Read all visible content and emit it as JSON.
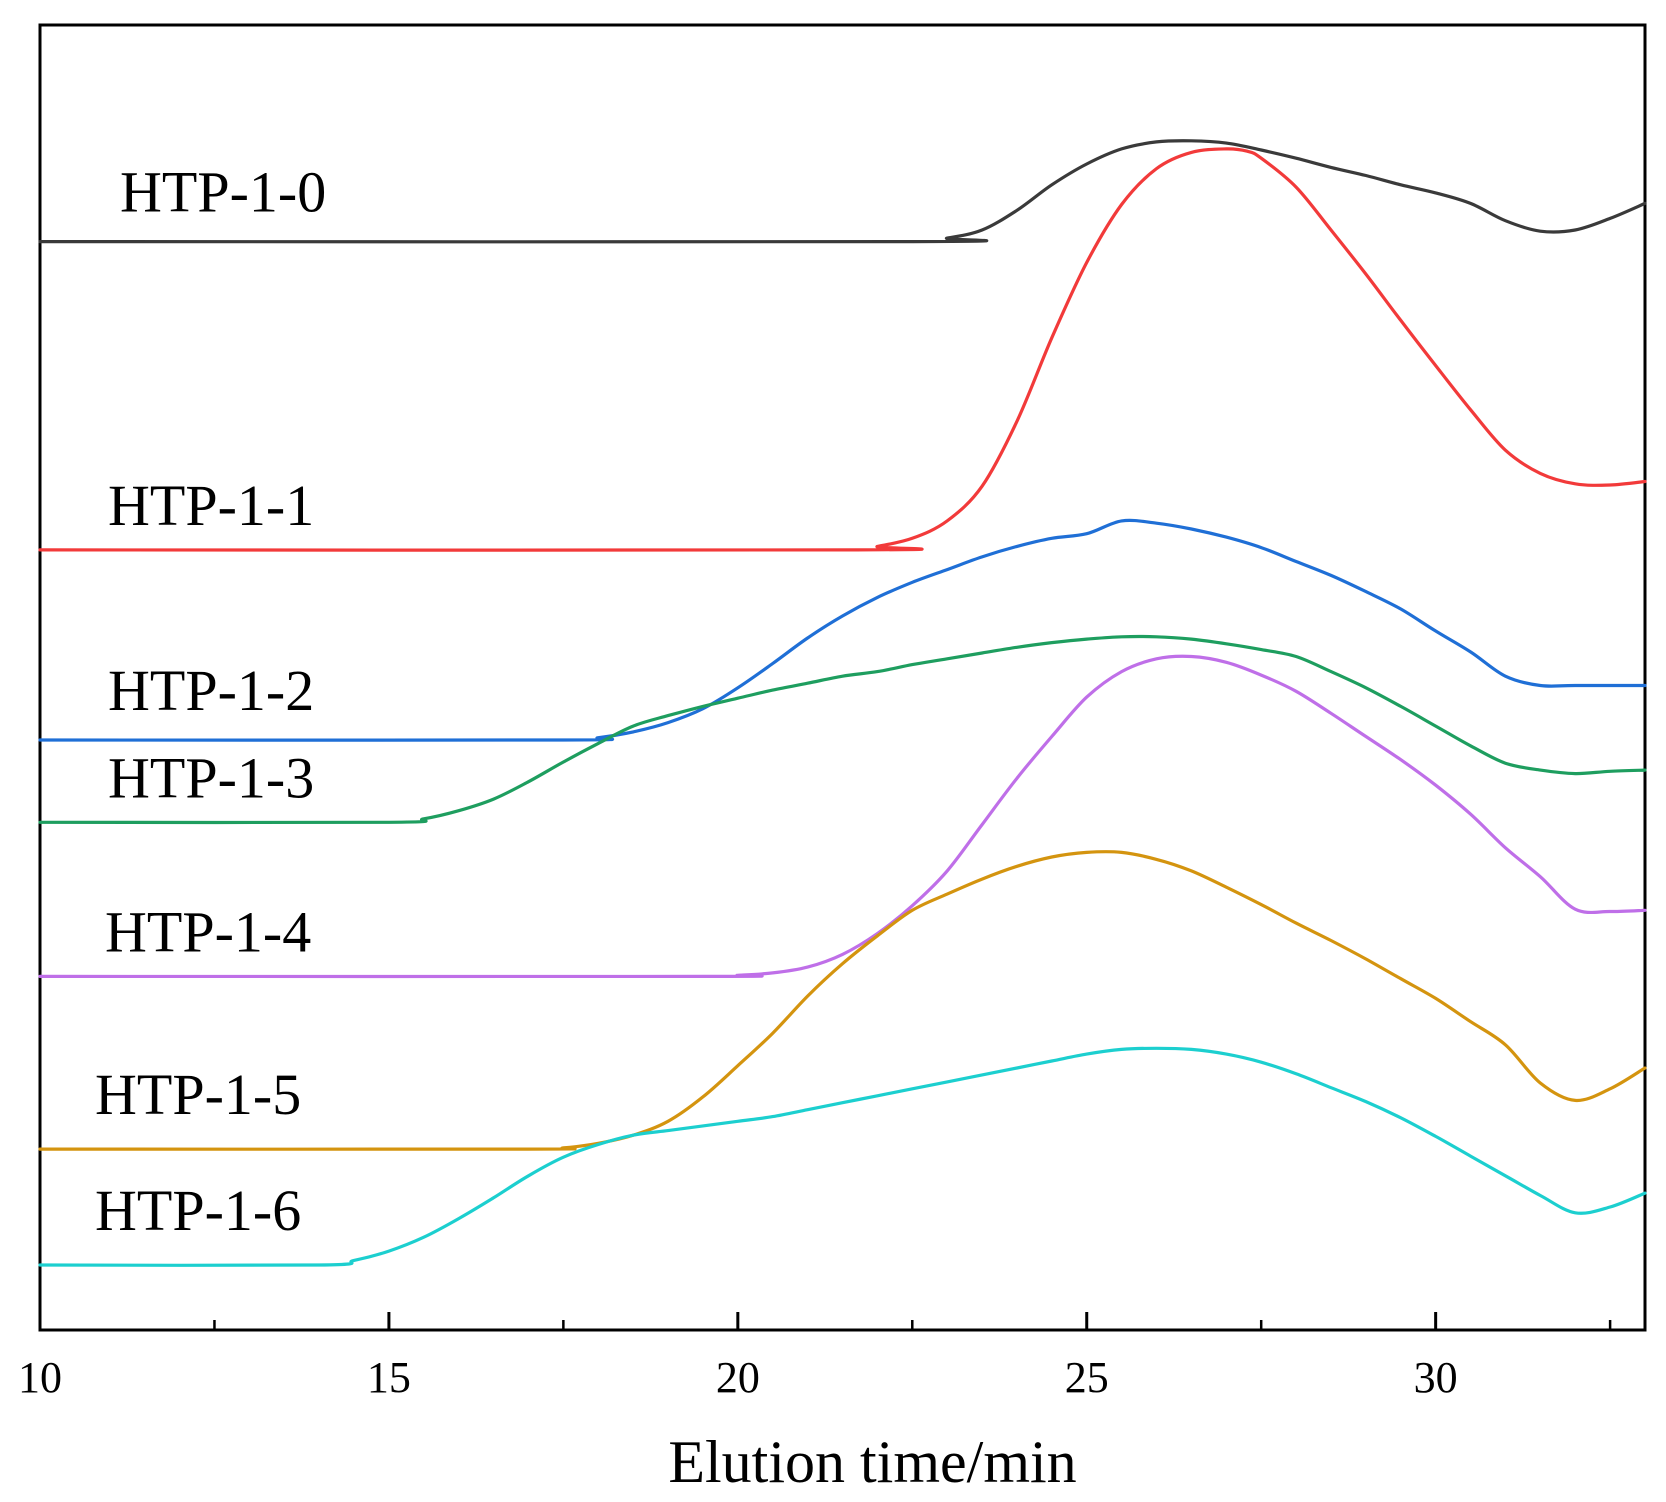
{
  "chart_data": {
    "type": "line",
    "title": "",
    "xlabel": "Elution time/min",
    "ylabel": "",
    "xlim": [
      10,
      33
    ],
    "x_ticks": [
      10,
      15,
      20,
      25,
      30
    ],
    "minor_ticks": [
      12.5,
      17.5,
      22.5,
      27.5,
      32.5
    ],
    "grid": false,
    "legend": "inline labels on left",
    "series": [
      {
        "name": "HTP-1-0",
        "color": "#3a3a3a",
        "points": [
          [
            10,
            0.883
          ],
          [
            22.5,
            0.883
          ],
          [
            23.0,
            0.886
          ],
          [
            23.5,
            0.893
          ],
          [
            24.0,
            0.91
          ],
          [
            24.5,
            0.932
          ],
          [
            25.0,
            0.95
          ],
          [
            25.5,
            0.963
          ],
          [
            26.0,
            0.969
          ],
          [
            26.5,
            0.97
          ],
          [
            27.0,
            0.968
          ],
          [
            27.5,
            0.962
          ],
          [
            28.0,
            0.955
          ],
          [
            28.5,
            0.947
          ],
          [
            29.0,
            0.94
          ],
          [
            29.5,
            0.932
          ],
          [
            30.0,
            0.925
          ],
          [
            30.5,
            0.916
          ],
          [
            31.0,
            0.901
          ],
          [
            31.5,
            0.892
          ],
          [
            32.0,
            0.893
          ],
          [
            32.5,
            0.903
          ],
          [
            33.0,
            0.916
          ]
        ]
      },
      {
        "name": "HTP-1-1",
        "color": "#f23a3a",
        "points": [
          [
            10,
            0.617
          ],
          [
            21.7,
            0.617
          ],
          [
            22.0,
            0.62
          ],
          [
            22.5,
            0.627
          ],
          [
            23.0,
            0.642
          ],
          [
            23.5,
            0.672
          ],
          [
            24.0,
            0.728
          ],
          [
            24.5,
            0.8
          ],
          [
            25.0,
            0.865
          ],
          [
            25.5,
            0.915
          ],
          [
            26.0,
            0.946
          ],
          [
            26.5,
            0.96
          ],
          [
            27.0,
            0.963
          ],
          [
            27.3,
            0.961
          ],
          [
            27.5,
            0.955
          ],
          [
            28.0,
            0.93
          ],
          [
            28.5,
            0.893
          ],
          [
            29.0,
            0.855
          ],
          [
            29.5,
            0.815
          ],
          [
            30.0,
            0.776
          ],
          [
            30.5,
            0.738
          ],
          [
            31.0,
            0.703
          ],
          [
            31.5,
            0.683
          ],
          [
            32.0,
            0.674
          ],
          [
            32.5,
            0.673
          ],
          [
            33.0,
            0.676
          ]
        ]
      },
      {
        "name": "HTP-1-2",
        "color": "#1f6fd6",
        "points": [
          [
            10,
            0.453
          ],
          [
            17.5,
            0.453
          ],
          [
            18.0,
            0.455
          ],
          [
            18.5,
            0.46
          ],
          [
            19.0,
            0.468
          ],
          [
            19.5,
            0.48
          ],
          [
            20.0,
            0.498
          ],
          [
            20.5,
            0.519
          ],
          [
            21.0,
            0.541
          ],
          [
            21.5,
            0.56
          ],
          [
            22.0,
            0.576
          ],
          [
            22.5,
            0.589
          ],
          [
            23.0,
            0.6
          ],
          [
            23.5,
            0.611
          ],
          [
            24.0,
            0.62
          ],
          [
            24.5,
            0.627
          ],
          [
            25.0,
            0.631
          ],
          [
            25.5,
            0.642
          ],
          [
            26.0,
            0.64
          ],
          [
            26.5,
            0.635
          ],
          [
            27.0,
            0.628
          ],
          [
            27.5,
            0.619
          ],
          [
            28.0,
            0.607
          ],
          [
            28.5,
            0.595
          ],
          [
            29.0,
            0.581
          ],
          [
            29.5,
            0.566
          ],
          [
            30.0,
            0.547
          ],
          [
            30.5,
            0.529
          ],
          [
            31.0,
            0.508
          ],
          [
            31.5,
            0.5
          ],
          [
            32.0,
            0.5
          ],
          [
            33.0,
            0.5
          ]
        ]
      },
      {
        "name": "HTP-1-3",
        "color": "#1e9e5f",
        "points": [
          [
            10,
            0.382
          ],
          [
            15.0,
            0.382
          ],
          [
            15.5,
            0.385
          ],
          [
            16.0,
            0.392
          ],
          [
            16.5,
            0.402
          ],
          [
            17.0,
            0.417
          ],
          [
            17.5,
            0.434
          ],
          [
            18.0,
            0.45
          ],
          [
            18.5,
            0.465
          ],
          [
            19.0,
            0.474
          ],
          [
            19.5,
            0.482
          ],
          [
            20.0,
            0.489
          ],
          [
            20.5,
            0.496
          ],
          [
            21.0,
            0.502
          ],
          [
            21.5,
            0.508
          ],
          [
            22.0,
            0.512
          ],
          [
            22.5,
            0.518
          ],
          [
            23.0,
            0.523
          ],
          [
            23.5,
            0.528
          ],
          [
            24.0,
            0.533
          ],
          [
            24.5,
            0.537
          ],
          [
            25.0,
            0.54
          ],
          [
            25.5,
            0.542
          ],
          [
            26.0,
            0.542
          ],
          [
            26.5,
            0.54
          ],
          [
            27.0,
            0.536
          ],
          [
            27.5,
            0.531
          ],
          [
            28.0,
            0.525
          ],
          [
            28.5,
            0.512
          ],
          [
            29.0,
            0.498
          ],
          [
            29.5,
            0.482
          ],
          [
            30.0,
            0.465
          ],
          [
            30.5,
            0.448
          ],
          [
            31.0,
            0.433
          ],
          [
            31.5,
            0.427
          ],
          [
            32.0,
            0.424
          ],
          [
            32.5,
            0.426
          ],
          [
            33.0,
            0.427
          ]
        ]
      },
      {
        "name": "HTP-1-4",
        "color": "#bf6fe8",
        "points": [
          [
            10,
            0.249
          ],
          [
            19.5,
            0.249
          ],
          [
            20.0,
            0.25
          ],
          [
            20.5,
            0.252
          ],
          [
            21.0,
            0.257
          ],
          [
            21.5,
            0.268
          ],
          [
            22.0,
            0.286
          ],
          [
            22.5,
            0.31
          ],
          [
            23.0,
            0.34
          ],
          [
            23.5,
            0.38
          ],
          [
            24.0,
            0.42
          ],
          [
            24.5,
            0.456
          ],
          [
            25.0,
            0.49
          ],
          [
            25.5,
            0.512
          ],
          [
            26.0,
            0.523
          ],
          [
            26.5,
            0.525
          ],
          [
            27.0,
            0.52
          ],
          [
            27.5,
            0.509
          ],
          [
            28.0,
            0.495
          ],
          [
            28.5,
            0.476
          ],
          [
            29.0,
            0.456
          ],
          [
            29.5,
            0.436
          ],
          [
            30.0,
            0.414
          ],
          [
            30.5,
            0.389
          ],
          [
            31.0,
            0.36
          ],
          [
            31.5,
            0.335
          ],
          [
            32.0,
            0.307
          ],
          [
            32.5,
            0.305
          ],
          [
            33.0,
            0.306
          ]
        ]
      },
      {
        "name": "HTP-1-5",
        "color": "#d4940f",
        "points": [
          [
            10,
            0.1
          ],
          [
            17.0,
            0.1
          ],
          [
            17.5,
            0.101
          ],
          [
            18.0,
            0.105
          ],
          [
            18.5,
            0.112
          ],
          [
            19.0,
            0.124
          ],
          [
            19.5,
            0.145
          ],
          [
            20.0,
            0.172
          ],
          [
            20.5,
            0.2
          ],
          [
            21.0,
            0.232
          ],
          [
            21.5,
            0.26
          ],
          [
            22.0,
            0.284
          ],
          [
            22.5,
            0.306
          ],
          [
            23.0,
            0.32
          ],
          [
            23.5,
            0.333
          ],
          [
            24.0,
            0.344
          ],
          [
            24.5,
            0.352
          ],
          [
            25.0,
            0.356
          ],
          [
            25.5,
            0.356
          ],
          [
            26.0,
            0.35
          ],
          [
            26.5,
            0.34
          ],
          [
            27.0,
            0.326
          ],
          [
            27.5,
            0.311
          ],
          [
            28.0,
            0.295
          ],
          [
            28.5,
            0.28
          ],
          [
            29.0,
            0.264
          ],
          [
            29.5,
            0.247
          ],
          [
            30.0,
            0.23
          ],
          [
            30.5,
            0.21
          ],
          [
            31.0,
            0.19
          ],
          [
            31.5,
            0.157
          ],
          [
            32.0,
            0.142
          ],
          [
            32.5,
            0.152
          ],
          [
            33.0,
            0.17
          ]
        ]
      },
      {
        "name": "HTP-1-6",
        "color": "#1ccfcf",
        "points": [
          [
            10,
            0.0
          ],
          [
            14.0,
            0.0
          ],
          [
            14.5,
            0.004
          ],
          [
            15.0,
            0.012
          ],
          [
            15.5,
            0.024
          ],
          [
            16.0,
            0.04
          ],
          [
            16.5,
            0.058
          ],
          [
            17.0,
            0.077
          ],
          [
            17.5,
            0.093
          ],
          [
            18.0,
            0.104
          ],
          [
            18.5,
            0.112
          ],
          [
            19.0,
            0.116
          ],
          [
            19.5,
            0.12
          ],
          [
            20.0,
            0.124
          ],
          [
            20.5,
            0.128
          ],
          [
            21.0,
            0.134
          ],
          [
            21.5,
            0.14
          ],
          [
            22.0,
            0.146
          ],
          [
            22.5,
            0.152
          ],
          [
            23.0,
            0.158
          ],
          [
            23.5,
            0.164
          ],
          [
            24.0,
            0.17
          ],
          [
            24.5,
            0.176
          ],
          [
            25.0,
            0.182
          ],
          [
            25.5,
            0.186
          ],
          [
            26.0,
            0.187
          ],
          [
            26.5,
            0.186
          ],
          [
            27.0,
            0.182
          ],
          [
            27.5,
            0.175
          ],
          [
            28.0,
            0.165
          ],
          [
            28.5,
            0.153
          ],
          [
            29.0,
            0.141
          ],
          [
            29.5,
            0.127
          ],
          [
            30.0,
            0.111
          ],
          [
            30.5,
            0.094
          ],
          [
            31.0,
            0.077
          ],
          [
            31.5,
            0.06
          ],
          [
            32.0,
            0.045
          ],
          [
            32.5,
            0.05
          ],
          [
            33.0,
            0.062
          ]
        ]
      }
    ]
  }
}
